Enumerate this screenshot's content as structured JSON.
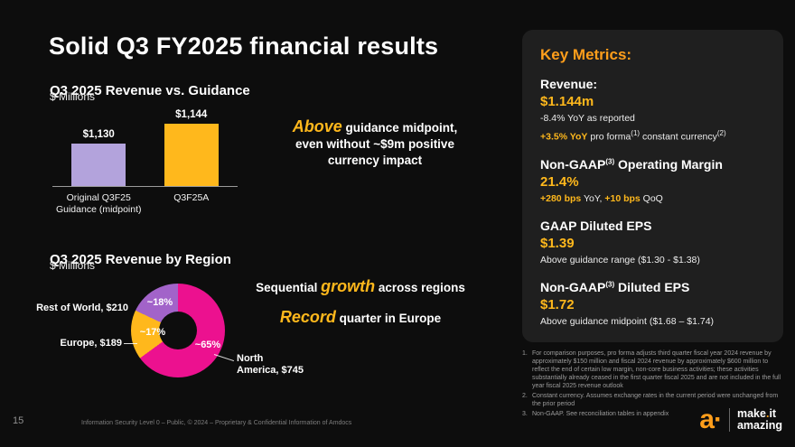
{
  "title": "Solid Q3 FY2025 financial results",
  "brand": {
    "accent_gold": "#ffb81c",
    "logo_orange": "#ff9e1b",
    "panel_bg": "#1f1f1f",
    "slide_bg": "#0d0d0d"
  },
  "rev_guidance": {
    "title": "Q3 2025 Revenue vs. Guidance",
    "unit": "$ Millions",
    "annotation": {
      "hl": "Above",
      "line1": " guidance midpoint,",
      "line2": "even without ~$9m positive",
      "line3": "currency impact"
    }
  },
  "rev_region": {
    "title": "Q3 2025 Revenue by Region",
    "unit": "$ Millions",
    "na_display": "North\nAmerica, $745",
    "note1": {
      "pre": "Sequential ",
      "hl": "growth",
      "post": " across regions"
    },
    "note2": {
      "hl": "Record",
      "post": " quarter in Europe"
    }
  },
  "chart_data": [
    {
      "type": "bar",
      "title": "Q3 2025 Revenue vs. Guidance",
      "ylabel": "$ Millions",
      "categories": [
        "Original Q3F25 Guidance (midpoint)",
        "Q3F25A"
      ],
      "values": [
        1130,
        1144
      ],
      "value_labels": [
        "$1,130",
        "$1,144"
      ],
      "colors": [
        "#b3a3dc",
        "#ffb81c"
      ],
      "ylim": [
        1100,
        1150
      ],
      "grid": false,
      "legend": false
    },
    {
      "type": "pie",
      "donut": true,
      "title": "Q3 2025 Revenue by Region",
      "unit": "$ Millions",
      "slices": [
        {
          "label": "North America, $745",
          "value": 745,
          "pct": 65,
          "pct_label": "~65%",
          "color": "#ec118f"
        },
        {
          "label": "Europe, $189",
          "value": 189,
          "pct": 17,
          "pct_label": "~17%",
          "color": "#ffb81c"
        },
        {
          "label": "Rest of World, $210",
          "value": 210,
          "pct": 18,
          "pct_label": "~18%",
          "color": "#a263c9"
        }
      ]
    }
  ],
  "key_metrics": {
    "heading": "Key Metrics:",
    "revenue_title": "Revenue:",
    "revenue_value": "$1.144m",
    "revenue_sub1": "-8.4% YoY as reported",
    "revenue_sub2_hl": "+3.5% YoY",
    "revenue_sub2_a": " pro forma",
    "revenue_sub2_sup1": "(1)",
    "revenue_sub2_b": " constant currency",
    "revenue_sub2_sup2": "(2)",
    "om_title_a": "Non-GAAP",
    "om_title_sup": "(3)",
    "om_title_b": " Operating Margin",
    "om_value": "21.4%",
    "om_sub_hl1": "+280 bps",
    "om_sub_a": " YoY, ",
    "om_sub_hl2": "+10 bps",
    "om_sub_b": " QoQ",
    "gaap_title": "GAAP Diluted EPS",
    "gaap_value": "$1.39",
    "gaap_sub": "Above guidance range ($1.30 - $1.38)",
    "ngaap_title_a": "Non-GAAP",
    "ngaap_title_sup": "(3)",
    "ngaap_title_b": " Diluted EPS",
    "ngaap_value": "$1.72",
    "ngaap_sub": "Above guidance midpoint ($1.68 – $1.74)"
  },
  "footnotes": [
    {
      "num": "1.",
      "text": "For comparison purposes, pro forma adjusts third quarter fiscal year 2024 revenue by approximately $150 million and fiscal 2024 revenue by approximately $600 million to reflect the end of certain low margin, non-core business activities; these activities substantially already ceased in the first quarter fiscal 2025 and are not included in the full year fiscal 2025 revenue outlook"
    },
    {
      "num": "2.",
      "text": "Constant currency. Assumes exchange rates in the current period were unchanged from the prior period"
    },
    {
      "num": "3.",
      "text": "Non-GAAP. See reconciliation tables in appendix"
    }
  ],
  "footer": {
    "page_number": "15",
    "security": "Information Security Level 0 – Public, © 2024 – Proprietary & Confidential Information of Amdocs"
  },
  "logo": {
    "mark": "a·",
    "tag1_a": "make",
    "tag1_dot": ".",
    "tag1_b": "it",
    "tag2": "amazing"
  }
}
